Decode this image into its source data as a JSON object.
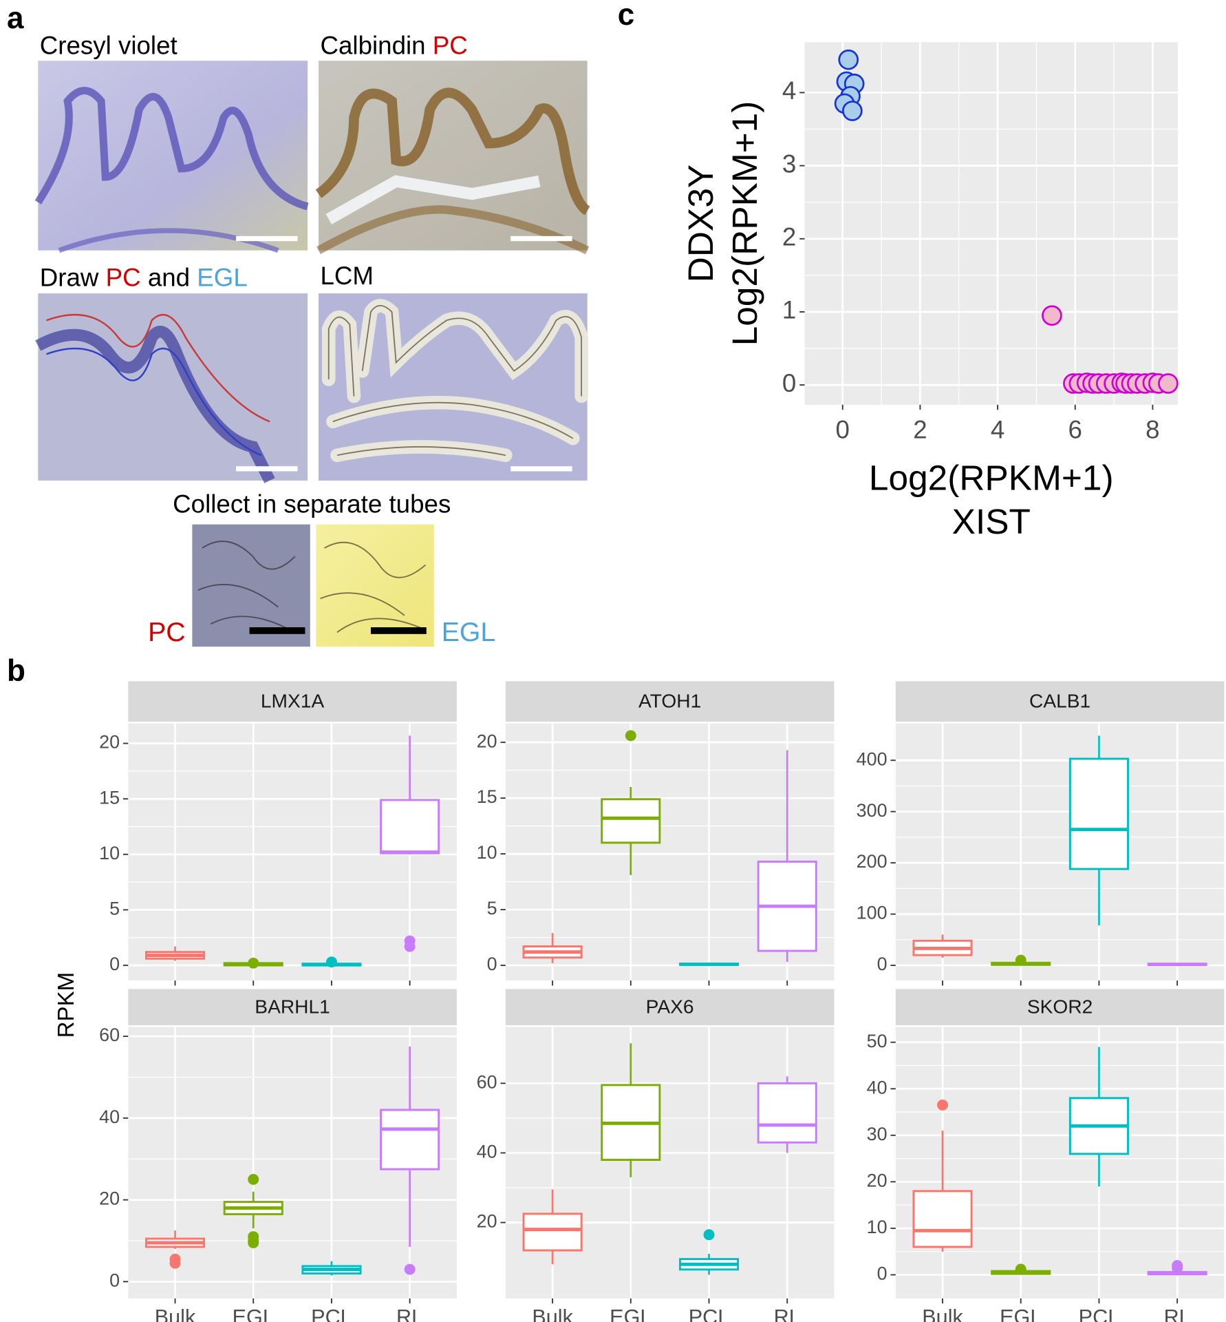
{
  "panel_labels": [
    "a",
    "b",
    "c"
  ],
  "panel_a": {
    "images": [
      {
        "label": [
          {
            "text": "Cresyl violet",
            "color": "#000000"
          }
        ]
      },
      {
        "label": [
          {
            "text": "Calbindin ",
            "color": "#000000"
          },
          {
            "text": "PC",
            "color": "#d40000"
          }
        ]
      },
      {
        "label": [
          {
            "text": "Draw ",
            "color": "#000000"
          },
          {
            "text": "PC",
            "color": "#d40000"
          },
          {
            "text": " and ",
            "color": "#000000"
          },
          {
            "text": "EGL",
            "color": "#4aa3df"
          }
        ]
      },
      {
        "label": [
          {
            "text": "LCM",
            "color": "#000000"
          }
        ]
      }
    ],
    "collect_title": "Collect in separate tubes",
    "tube_labels": [
      {
        "text": "PC",
        "color": "#d40000"
      },
      {
        "text": "EGL",
        "color": "#4aa3df"
      }
    ]
  },
  "panel_b": {
    "ylabel": "RPKM"
  },
  "chart_data": [
    {
      "type": "scatter",
      "ylabel": [
        "DDX3Y",
        "Log2(RPKM+1)"
      ],
      "xlabel": [
        "Log2(RPKM+1)",
        "XIST"
      ],
      "xlim": [
        -0.98,
        8.65
      ],
      "ylim": [
        -0.27,
        4.69
      ],
      "xticks": [
        0,
        2,
        4,
        6,
        8
      ],
      "yticks": [
        0,
        1,
        2,
        3,
        4
      ],
      "grid": true,
      "series": [
        {
          "color": "#a9cdea",
          "edge": "#1533d6",
          "x": [
            0.15,
            0.1,
            0.3,
            0.2,
            0.05,
            0.25
          ],
          "values": [
            4.45,
            4.15,
            4.12,
            3.95,
            3.85,
            3.75
          ]
        },
        {
          "color": "#f2b9cd",
          "edge": "#d000d0",
          "x": [
            5.4,
            5.95,
            6.1,
            6.3,
            6.45,
            6.6,
            6.8,
            7.0,
            7.2,
            7.3,
            7.45,
            7.6,
            7.8,
            8.0,
            8.15,
            8.4
          ],
          "values": [
            0.95,
            0.02,
            0.02,
            0.03,
            0.02,
            0.02,
            0.02,
            0.02,
            0.03,
            0.02,
            0.02,
            0.02,
            0.02,
            0.03,
            0.02,
            0.02
          ]
        }
      ]
    },
    {
      "type": "box",
      "title": "LMX1A",
      "categories": [
        null,
        null,
        null,
        null
      ],
      "colors": [
        "#f8766d",
        "#7cae00",
        "#00bfc4",
        "#c77cff"
      ],
      "ylim": [
        -1.37,
        21.8
      ],
      "yticks": [
        0,
        5,
        10,
        15,
        20
      ],
      "grid": true,
      "boxes": [
        {
          "min": 0.4,
          "q1": 0.6,
          "median": 0.9,
          "q3": 1.2,
          "max": 1.7,
          "outliers": []
        },
        {
          "min": 0,
          "q1": 0,
          "median": 0.1,
          "q3": 0.2,
          "max": 0.3,
          "outliers": [
            0.2
          ]
        },
        {
          "min": 0,
          "q1": 0,
          "median": 0.05,
          "q3": 0.15,
          "max": 0.2,
          "outliers": [
            0.3
          ]
        },
        {
          "min": 10,
          "q1": 10.1,
          "median": 10.2,
          "q3": 14.9,
          "max": 20.7,
          "outliers": [
            2.2,
            1.7
          ]
        }
      ]
    },
    {
      "type": "box",
      "title": "ATOH1",
      "categories": [
        null,
        null,
        null,
        null
      ],
      "colors": [
        "#f8766d",
        "#7cae00",
        "#00bfc4",
        "#c77cff"
      ],
      "ylim": [
        -1.36,
        21.7
      ],
      "yticks": [
        0,
        5,
        10,
        15,
        20
      ],
      "grid": true,
      "boxes": [
        {
          "min": 0.2,
          "q1": 0.7,
          "median": 1.2,
          "q3": 1.7,
          "max": 2.9,
          "outliers": []
        },
        {
          "min": 8.1,
          "q1": 11,
          "median": 13.2,
          "q3": 14.9,
          "max": 16,
          "outliers": [
            20.6
          ]
        },
        {
          "min": 0,
          "q1": 0.05,
          "median": 0.1,
          "q3": 0.15,
          "max": 0.2,
          "outliers": []
        },
        {
          "min": 0.3,
          "q1": 1.3,
          "median": 5.3,
          "q3": 9.3,
          "max": 19.3,
          "outliers": []
        }
      ]
    },
    {
      "type": "box",
      "title": "CALB1",
      "categories": [
        null,
        null,
        null,
        null
      ],
      "colors": [
        "#f8766d",
        "#7cae00",
        "#00bfc4",
        "#c77cff"
      ],
      "ylim": [
        -29.6,
        472
      ],
      "yticks": [
        0,
        100,
        200,
        300,
        400
      ],
      "grid": true,
      "boxes": [
        {
          "min": 15,
          "q1": 20,
          "median": 33,
          "q3": 48,
          "max": 60,
          "outliers": []
        },
        {
          "min": 0,
          "q1": 1,
          "median": 3,
          "q3": 5,
          "max": 8,
          "outliers": [
            10
          ]
        },
        {
          "min": 78,
          "q1": 188,
          "median": 265,
          "q3": 403,
          "max": 448,
          "outliers": []
        },
        {
          "min": 0,
          "q1": 1,
          "median": 2,
          "q3": 3,
          "max": 5,
          "outliers": []
        }
      ]
    },
    {
      "type": "box",
      "title": "BARHL1",
      "categories": [
        "Bulk",
        "EGL",
        "PCL",
        "RL"
      ],
      "colors": [
        "#f8766d",
        "#7cae00",
        "#00bfc4",
        "#c77cff"
      ],
      "ylim": [
        -4.1,
        62.3
      ],
      "yticks": [
        0,
        20,
        40,
        60
      ],
      "grid": true,
      "boxes": [
        {
          "min": 8,
          "q1": 8.5,
          "median": 9.5,
          "q3": 10.5,
          "max": 12.5,
          "outliers": [
            5.5,
            4.5
          ]
        },
        {
          "min": 13,
          "q1": 16.5,
          "median": 18,
          "q3": 19.5,
          "max": 22,
          "outliers": [
            25,
            11,
            10,
            9.5
          ]
        },
        {
          "min": 1.5,
          "q1": 2,
          "median": 3,
          "q3": 3.8,
          "max": 5,
          "outliers": []
        },
        {
          "min": 8.5,
          "q1": 27.5,
          "median": 37.3,
          "q3": 42,
          "max": 57.5,
          "outliers": [
            3
          ]
        }
      ]
    },
    {
      "type": "box",
      "title": "PAX6",
      "categories": [
        "Bulk",
        "EGL",
        "PCL",
        "RL"
      ],
      "colors": [
        "#f8766d",
        "#7cae00",
        "#00bfc4",
        "#c77cff"
      ],
      "ylim": [
        -1.8,
        76.2
      ],
      "yticks": [
        20,
        40,
        60
      ],
      "grid": true,
      "boxes": [
        {
          "min": 8,
          "q1": 12,
          "median": 18,
          "q3": 22.5,
          "max": 29.5,
          "outliers": []
        },
        {
          "min": 33,
          "q1": 38,
          "median": 48.5,
          "q3": 59.5,
          "max": 71.5,
          "outliers": []
        },
        {
          "min": 5,
          "q1": 6.5,
          "median": 8,
          "q3": 9.5,
          "max": 11,
          "outliers": [
            16.5
          ]
        },
        {
          "min": 40,
          "q1": 43,
          "median": 48,
          "q3": 60,
          "max": 62,
          "outliers": []
        }
      ]
    },
    {
      "type": "box",
      "title": "SKOR2",
      "categories": [
        "Bulk",
        "EGL",
        "PCL",
        "RL"
      ],
      "colors": [
        "#f8766d",
        "#7cae00",
        "#00bfc4",
        "#c77cff"
      ],
      "ylim": [
        -5.07,
        53.3
      ],
      "yticks": [
        0,
        10,
        20,
        30,
        40,
        50
      ],
      "grid": true,
      "boxes": [
        {
          "min": 5,
          "q1": 6,
          "median": 9.5,
          "q3": 18,
          "max": 31,
          "outliers": [
            36.5
          ]
        },
        {
          "min": 0,
          "q1": 0.2,
          "median": 0.5,
          "q3": 0.8,
          "max": 1,
          "outliers": [
            1.2
          ]
        },
        {
          "min": 19,
          "q1": 26,
          "median": 32,
          "q3": 38,
          "max": 49,
          "outliers": []
        },
        {
          "min": 0,
          "q1": 0.1,
          "median": 0.3,
          "q3": 0.6,
          "max": 1,
          "outliers": [
            1.5,
            2
          ]
        }
      ]
    }
  ]
}
